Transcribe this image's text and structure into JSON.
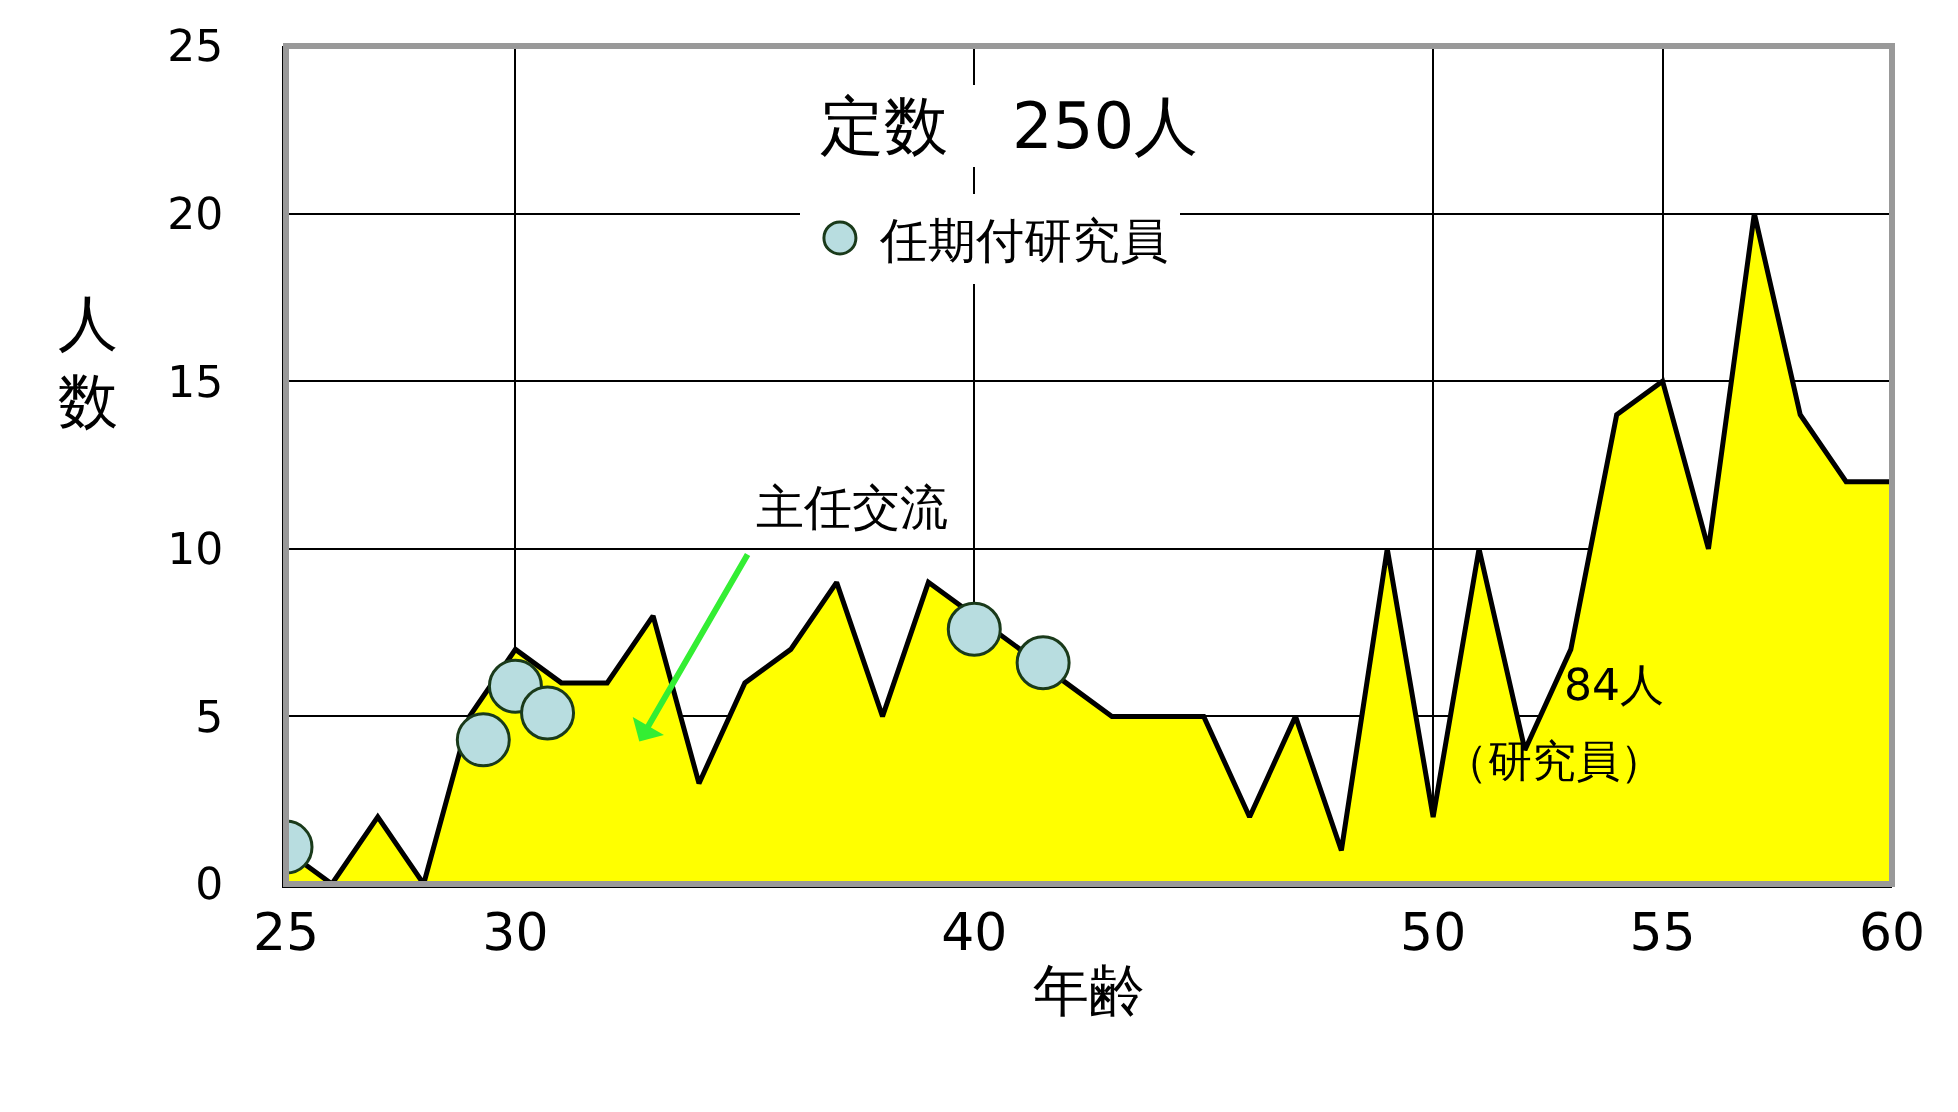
{
  "chart_data": {
    "type": "area",
    "title": "定数　250人",
    "xlabel": "年齢",
    "ylabel": "人数",
    "x": [
      25,
      26,
      27,
      28,
      29,
      30,
      31,
      32,
      33,
      34,
      35,
      36,
      37,
      38,
      39,
      40,
      41,
      42,
      43,
      44,
      45,
      46,
      47,
      48,
      49,
      50,
      51,
      52,
      53,
      54,
      55,
      56,
      57,
      58,
      59,
      60
    ],
    "series": [
      {
        "color": "#ffff00",
        "values": [
          1,
          0,
          2,
          0,
          5,
          7,
          6,
          6,
          8,
          3,
          6,
          7,
          9,
          5,
          9,
          8,
          7,
          6,
          5,
          5,
          5,
          2,
          5,
          1,
          10,
          2,
          10,
          4,
          7,
          14,
          15,
          10,
          20,
          14,
          12,
          12
        ]
      },
      {
        "name": "任期付研究員",
        "type": "scatter",
        "marker": "circle",
        "color": "#b8dde0",
        "x": [
          25,
          29.3,
          30,
          30.7,
          40,
          41.5
        ],
        "values": [
          1.1,
          4.3,
          5.9,
          5.1,
          7.6,
          6.6
        ]
      }
    ],
    "xlim": [
      25,
      60
    ],
    "xticks": [
      25,
      30,
      40,
      50,
      55,
      60
    ],
    "ylim": [
      0,
      25
    ],
    "yticks": [
      0,
      5,
      10,
      15,
      20,
      25
    ],
    "grid": true,
    "legend": "top",
    "annotations": [
      "主任交流",
      "84人",
      "（研究員）"
    ]
  }
}
